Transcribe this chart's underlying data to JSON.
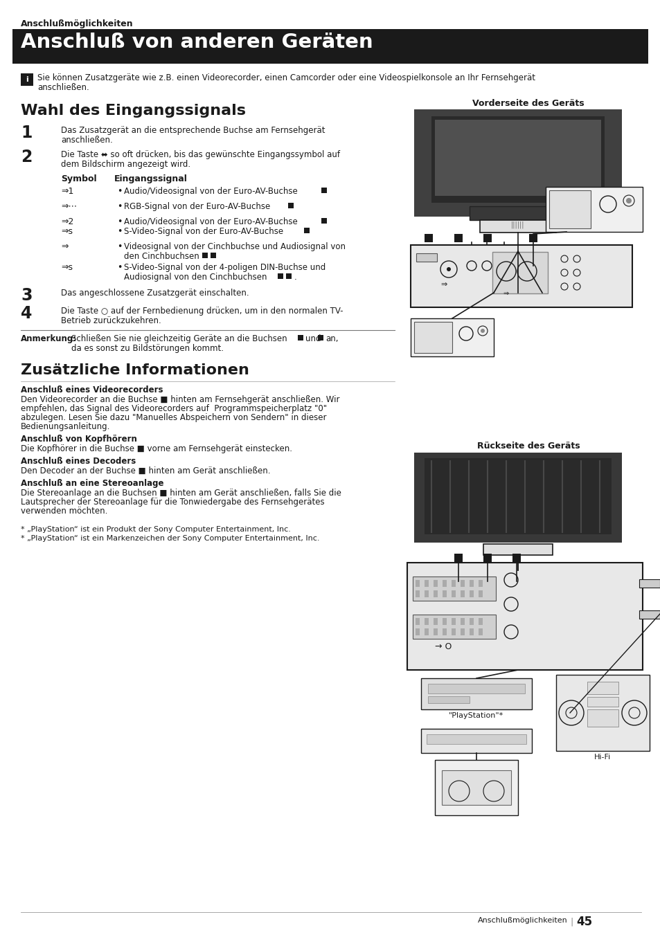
{
  "page_bg": "#ffffff",
  "section_label": "Anschlußmöglichkeiten",
  "title": "Anschluß von anderen Geräten",
  "title_bg": "#1a1a1a",
  "title_color": "#ffffff",
  "intro_line1": "Sie können Zusatzgeräte wie z.B. einen Videorecorder, einen Camcorder oder eine Videospielkonsole an Ihr Fernsehgerät",
  "intro_line2": "anschließen.",
  "section2_title": "Wahl des Eingangssignals",
  "step1_text_line1": "Das Zusatzgerät an die entsprechende Buchse am Fernsehgerät",
  "step1_text_line2": "anschließen.",
  "step2_text_line1": "Die Taste ⬌ so oft drücken, bis das gewünschte Eingangssymbol auf",
  "step2_text_line2": "dem Bildschirm angezeigt wird.",
  "sym_header": "Symbol",
  "sig_header": "Eingangssignal",
  "sym1": "⇒1",
  "sig1": "Audio/Videosignal von der Euro-AV-Buchse",
  "sym2": "⇒⋯",
  "sig2": "RGB-Signal von der Euro-AV-Buchse",
  "sym3a": "⇒2",
  "sig3a": "Audio/Videosignal von der Euro-AV-Buchse",
  "sym3b": "⇒s",
  "sig3b": "S-Video-Signal von der Euro-AV-Buchse",
  "sym4": "⇒",
  "sig4a": "Videosignal von der Cinchbuchse und Audiosignal von",
  "sig4b": "den Cinchbuchsen",
  "sym5": "⇒s",
  "sig5a": "S-Video-Signal von der 4-poligen DIN-Buchse und",
  "sig5b": "Audiosignal von den Cinchbuchsen",
  "step3_text": "Das angeschlossene Zusatzgerät einschalten.",
  "step4_line1": "Die Taste ○ auf der Fernbedienung drücken, um in den normalen TV-",
  "step4_line2": "Betrieb zurückzukehren.",
  "note_label": "Anmerkung:",
  "note_line1a": "Schließen Sie nie gleichzeitig Geräte an die Buchsen",
  "note_line1b": "und",
  "note_line1c": "an,",
  "note_line2": "da es sonst zu Bildstörungen kommt.",
  "section3_title": "Zusätzliche Informationen",
  "ss1_title": "Anschluß eines Videorecorders",
  "ss1_l1": "Den Videorecorder an die Buchse ■ hinten am Fernsehgerät anschließen. Wir",
  "ss1_l2": "empfehlen, das Signal des Videorecorders auf  Programmspeicherplatz \"0\"",
  "ss1_l3": "abzulegen. Lesen Sie dazu \"Manuelles Abspeichern von Sendern\" in dieser",
  "ss1_l4": "Bedienungsanleitung.",
  "ss2_title": "Anschluß von Kopfhörern",
  "ss2_text": "Die Kopfhörer in die Buchse ■ vorne am Fernsehgerät einstecken.",
  "ss3_title": "Anschluß eines Decoders",
  "ss3_text": "Den Decoder an der Buchse ■ hinten am Gerät anschließen.",
  "ss4_title": "Anschluß an eine Stereoanlage",
  "ss4_l1": "Die Stereoanlage an die Buchsen ■ hinten am Gerät anschließen, falls Sie die",
  "ss4_l2": "Lautsprecher der Stereoanlage für die Tonwiedergabe des Fernsehgerätes",
  "ss4_l3": "verwenden möchten.",
  "fn1": "* „PlayStation“ ist ein Produkt der Sony Computer Entertainment, Inc.",
  "fn2": "* „PlayStation“ ist ein Markenzeichen der Sony Computer Entertainment, Inc.",
  "footer_text": "Anschlußmöglichkeiten",
  "footer_page": "45",
  "vorderseite_label": "Vorderseite des Geräts",
  "rueckseite_label": "Rückseite des Geräts",
  "playstation_label": "\"PlayStation\"*",
  "hifi_label": "Hi-Fi",
  "dark": "#1a1a1a",
  "mid_gray": "#555555",
  "light_gray": "#cccccc",
  "text_color": "#2a2a2a"
}
